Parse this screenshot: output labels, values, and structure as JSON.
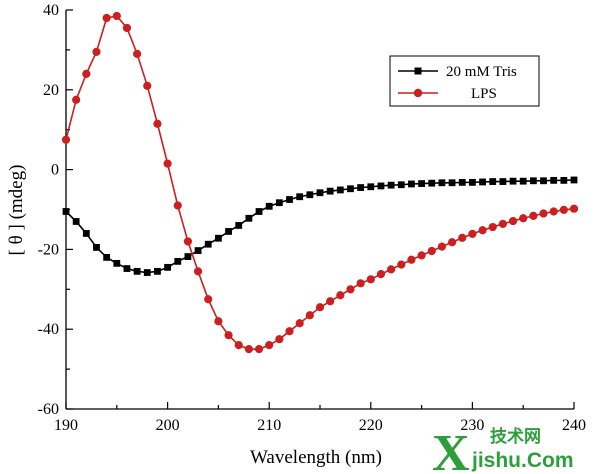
{
  "chart_data": {
    "type": "line",
    "xlabel": "Wavelength (nm)",
    "ylabel": "[ θ ] (mdeg)",
    "xlim": [
      190,
      240
    ],
    "ylim": [
      -60,
      40
    ],
    "xticks": [
      "190",
      "200",
      "210",
      "220",
      "230",
      "240"
    ],
    "yticks": [
      "40",
      "20",
      "0",
      "-20",
      "-40",
      "-60"
    ],
    "grid": false,
    "legend": "top-right",
    "series": [
      {
        "name": "20 mM Tris",
        "color": "#000000",
        "marker": "square",
        "x": [
          190,
          191,
          192,
          193,
          194,
          195,
          196,
          197,
          198,
          199,
          200,
          201,
          202,
          203,
          204,
          205,
          206,
          207,
          208,
          209,
          210,
          211,
          212,
          213,
          214,
          215,
          216,
          217,
          218,
          219,
          220,
          221,
          222,
          223,
          224,
          225,
          226,
          227,
          228,
          229,
          230,
          231,
          232,
          233,
          234,
          235,
          236,
          237,
          238,
          239,
          240
        ],
        "values": [
          -10.5,
          -13,
          -16,
          -19.5,
          -22,
          -23.5,
          -24.8,
          -25.5,
          -25.8,
          -25.5,
          -24.5,
          -23,
          -21.8,
          -20.3,
          -18.7,
          -17.2,
          -15.5,
          -14,
          -12.2,
          -10.5,
          -9.2,
          -8.3,
          -7.5,
          -6.8,
          -6.3,
          -5.8,
          -5.4,
          -5.1,
          -4.8,
          -4.5,
          -4.3,
          -4.1,
          -3.9,
          -3.8,
          -3.6,
          -3.5,
          -3.4,
          -3.3,
          -3.3,
          -3.2,
          -3.2,
          -3.1,
          -3.0,
          -3.0,
          -2.9,
          -2.9,
          -2.8,
          -2.8,
          -2.7,
          -2.7,
          -2.6
        ]
      },
      {
        "name": "LPS",
        "color": "#cc1f1f",
        "marker": "circle",
        "x": [
          190,
          191,
          192,
          193,
          194,
          195,
          196,
          197,
          198,
          199,
          200,
          201,
          202,
          203,
          204,
          205,
          206,
          207,
          208,
          209,
          210,
          211,
          212,
          213,
          214,
          215,
          216,
          217,
          218,
          219,
          220,
          221,
          222,
          223,
          224,
          225,
          226,
          227,
          228,
          229,
          230,
          231,
          232,
          233,
          234,
          235,
          236,
          237,
          238,
          239,
          240
        ],
        "values": [
          7.5,
          17.5,
          24,
          29.5,
          38,
          38.5,
          35.5,
          29,
          21,
          11.5,
          1.5,
          -9,
          -18,
          -25.5,
          -32.5,
          -38,
          -41.5,
          -44,
          -45,
          -45,
          -44,
          -42.5,
          -40.5,
          -38.5,
          -36.5,
          -34.5,
          -33,
          -31.5,
          -30,
          -28.5,
          -27.5,
          -26.2,
          -25,
          -23.8,
          -22.6,
          -21.5,
          -20.4,
          -19.3,
          -18.2,
          -17.1,
          -16.1,
          -15.2,
          -14.4,
          -13.6,
          -12.9,
          -12.2,
          -11.6,
          -11,
          -10.5,
          -10.1,
          -9.8
        ]
      }
    ]
  },
  "watermark": {
    "big_letter": "X",
    "chinese": "技术网",
    "site": "jishu.Com",
    "color": "#2e9e3a"
  }
}
